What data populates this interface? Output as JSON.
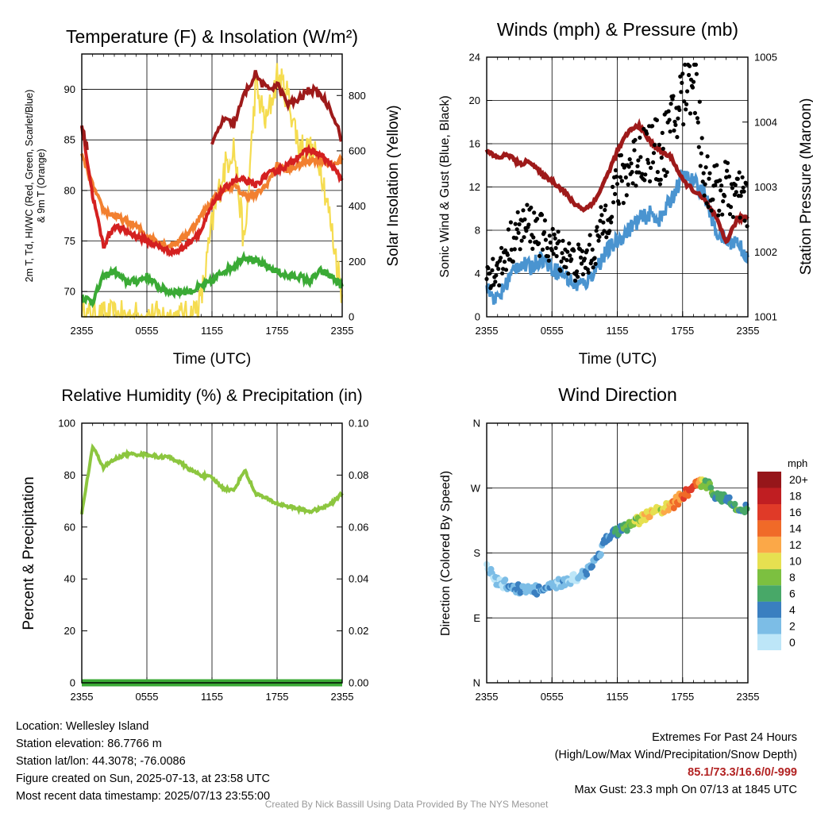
{
  "colors": {
    "temp": "#d42020",
    "dewpoint": "#3aaa35",
    "heat_index": "#9e1a1a",
    "temp_9m": "#f28030",
    "solar": "#f5dc50",
    "wind": "#4a94d0",
    "gust": "#000000",
    "pressure": "#9e1a1a",
    "rh": "#8cc63f",
    "precip": "#3aaa35"
  },
  "panels": {
    "temperature": {
      "title": "Temperature (F) & Insolation (W/m²)",
      "ylabel_left_line1": "2m T, Td, HI/WC (Red, Green, Scarlet/Blue)",
      "ylabel_left_line2": "& 9m T (Orange)",
      "ylabel_right": "Solar Insolation (Yellow)",
      "xlabel": "Time (UTC)",
      "left_ticks": [
        "70",
        "75",
        "80",
        "85",
        "90"
      ],
      "right_ticks": [
        "0",
        "200",
        "400",
        "600",
        "800"
      ],
      "x_ticks": [
        "2355",
        "0555",
        "1155",
        "1755",
        "2355"
      ]
    },
    "winds": {
      "title": "Winds (mph) & Pressure (mb)",
      "ylabel_left": "Sonic Wind & Gust (Blue, Black)",
      "ylabel_right": "Station Pressure (Maroon)",
      "xlabel": "Time (UTC)",
      "left_ticks": [
        "0",
        "4",
        "8",
        "12",
        "16",
        "20",
        "24"
      ],
      "right_ticks": [
        "1001",
        "1002",
        "1003",
        "1004",
        "1005"
      ],
      "x_ticks": [
        "2355",
        "0555",
        "1155",
        "1755",
        "2355"
      ]
    },
    "humidity": {
      "title": "Relative Humidity (%) & Precipitation (in)",
      "ylabel_left": "Percent & Precipitation",
      "left_ticks": [
        "0",
        "20",
        "40",
        "60",
        "80",
        "100"
      ],
      "right_ticks": [
        "0.00",
        "0.02",
        "0.04",
        "0.06",
        "0.08",
        "0.10"
      ],
      "x_ticks": [
        "2355",
        "0555",
        "1155",
        "1755",
        "2355"
      ]
    },
    "direction": {
      "title": "Wind Direction",
      "ylabel_left": "Direction (Colored By Speed)",
      "left_ticks": [
        "N",
        "E",
        "S",
        "W",
        "N"
      ],
      "x_ticks": [
        "2355",
        "0555",
        "1155",
        "1755",
        "2355"
      ],
      "colorbar_title": "mph",
      "colorbar_labels": [
        "0",
        "2",
        "4",
        "6",
        "8",
        "10",
        "12",
        "14",
        "16",
        "18",
        "20+"
      ],
      "colorbar_colors": [
        "#bde6f8",
        "#7cbde6",
        "#3a7fc0",
        "#48a868",
        "#7cc040",
        "#e6e050",
        "#fba848",
        "#f06a28",
        "#e03a28",
        "#c01e22",
        "#96161a"
      ]
    }
  },
  "info": {
    "location": "Location: Wellesley Island",
    "elevation": "Station elevation: 86.7766 m",
    "latlon": "Station lat/lon: 44.3078; -76.0086",
    "created": "Figure created on Sun, 2025-07-13, at 23:58 UTC",
    "recent": "Most recent data timestamp: 2025/07/13 23:55:00",
    "extremes_title": "Extremes For Past 24 Hours",
    "extremes_legend": "(High/Low/Max Wind/Precipitation/Snow Depth)",
    "extremes_values": "85.1/73.3/16.6/0/-999",
    "max_gust": "Max Gust: 23.3 mph On 07/13 at 1845 UTC",
    "credit": "Created By Nick Bassill Using Data Provided By The NYS Mesonet"
  },
  "chart_data": [
    {
      "type": "line",
      "title": "Temperature (F) & Insolation (W/m²)",
      "xlabel": "Time (UTC)",
      "ylabel": "2m T, Td, HI/WC (Red, Green, Scarlet/Blue) & 9m T (Orange)",
      "ylabel_right": "Solar Insolation (Yellow)",
      "x": [
        "2355",
        "0055",
        "0155",
        "0255",
        "0355",
        "0455",
        "0555",
        "0655",
        "0755",
        "0855",
        "0955",
        "1055",
        "1155",
        "1255",
        "1355",
        "1455",
        "1555",
        "1655",
        "1755",
        "1855",
        "1955",
        "2055",
        "2155",
        "2255",
        "2355"
      ],
      "ylim": [
        67.5,
        93.5
      ],
      "ylim_right": [
        0,
        950
      ],
      "series": [
        {
          "name": "2m T",
          "axis": "left",
          "values": [
            86.5,
            79.5,
            74.5,
            76.5,
            76.0,
            75.5,
            75.0,
            74.5,
            74.0,
            74.0,
            75.0,
            76.0,
            78.5,
            80.0,
            81.0,
            81.0,
            80.5,
            81.5,
            82.0,
            82.5,
            83.5,
            84.0,
            83.5,
            82.5,
            81.0
          ]
        },
        {
          "name": "Td",
          "axis": "left",
          "values": [
            69.5,
            69.0,
            71.5,
            72.0,
            71.0,
            71.0,
            71.5,
            70.5,
            70.0,
            70.0,
            70.0,
            70.5,
            71.0,
            72.0,
            72.5,
            73.5,
            73.0,
            72.5,
            72.0,
            71.5,
            71.5,
            71.0,
            72.0,
            71.5,
            70.5
          ]
        },
        {
          "name": "HI/WC",
          "axis": "left",
          "segments": [
            [
              0,
              86.5
            ],
            [
              1,
              84.0
            ],
            [
              12,
              84.5
            ],
            [
              13,
              87.0
            ],
            [
              14,
              86.5
            ],
            [
              15,
              89.5
            ],
            [
              16,
              91.5
            ],
            [
              17,
              90.0
            ],
            [
              18,
              90.5
            ],
            [
              19,
              88.5
            ],
            [
              20,
              89.0
            ],
            [
              21,
              90.0
            ],
            [
              22,
              89.5
            ],
            [
              23,
              88.0
            ],
            [
              24,
              85.0
            ]
          ]
        },
        {
          "name": "9m T",
          "axis": "left",
          "values": [
            83.5,
            80.5,
            78.0,
            77.5,
            77.0,
            76.5,
            75.5,
            75.0,
            74.5,
            75.0,
            76.0,
            77.5,
            79.0,
            80.0,
            80.5,
            79.5,
            79.5,
            80.5,
            82.5,
            82.0,
            82.5,
            83.0,
            83.0,
            82.5,
            83.0
          ]
        },
        {
          "name": "Solar",
          "axis": "right",
          "values": [
            0,
            0,
            0,
            0,
            0,
            0,
            0,
            0,
            0,
            0,
            0,
            60,
            330,
            520,
            620,
            250,
            830,
            700,
            870,
            800,
            620,
            600,
            560,
            320,
            80
          ]
        }
      ]
    },
    {
      "type": "line",
      "title": "Winds (mph) & Pressure (mb)",
      "xlabel": "Time (UTC)",
      "ylabel": "Sonic Wind & Gust (Blue, Black)",
      "ylabel_right": "Station Pressure (Maroon)",
      "x": [
        "2355",
        "0055",
        "0155",
        "0255",
        "0355",
        "0455",
        "0555",
        "0655",
        "0755",
        "0855",
        "0955",
        "1055",
        "1155",
        "1255",
        "1355",
        "1455",
        "1555",
        "1655",
        "1755",
        "1855",
        "1955",
        "2055",
        "2155",
        "2255",
        "2355"
      ],
      "ylim": [
        0,
        24
      ],
      "ylim_right": [
        1001,
        1005
      ],
      "series": [
        {
          "name": "Sonic Wind",
          "axis": "left",
          "values": [
            2.5,
            1.5,
            3.5,
            5.0,
            4.5,
            5.5,
            4.5,
            4.0,
            3.0,
            3.0,
            4.5,
            6.0,
            7.0,
            8.0,
            9.0,
            9.5,
            9.0,
            11.0,
            13.0,
            12.5,
            11.5,
            8.0,
            7.0,
            7.0,
            5.5
          ]
        },
        {
          "name": "Gust",
          "axis": "left",
          "values": [
            4.5,
            4.0,
            6.5,
            8.0,
            8.5,
            7.5,
            6.5,
            6.0,
            5.0,
            5.0,
            6.5,
            9.5,
            12.0,
            13.5,
            15.0,
            15.5,
            15.0,
            17.5,
            20.5,
            23.3,
            13.0,
            11.5,
            12.0,
            11.0,
            10.5
          ]
        },
        {
          "name": "Station Pressure",
          "axis": "right",
          "values": [
            1003.55,
            1003.45,
            1003.5,
            1003.35,
            1003.4,
            1003.2,
            1003.1,
            1002.95,
            1002.75,
            1002.65,
            1002.8,
            1003.15,
            1003.55,
            1003.85,
            1003.95,
            1003.7,
            1003.55,
            1003.45,
            1003.1,
            1002.95,
            1002.8,
            1002.55,
            1002.15,
            1002.5,
            1002.55
          ]
        }
      ]
    },
    {
      "type": "line",
      "title": "Relative Humidity (%) & Precipitation (in)",
      "ylabel": "Percent & Precipitation",
      "x": [
        "2355",
        "0055",
        "0155",
        "0255",
        "0355",
        "0455",
        "0555",
        "0655",
        "0755",
        "0855",
        "0955",
        "1055",
        "1155",
        "1255",
        "1355",
        "1455",
        "1555",
        "1655",
        "1755",
        "1855",
        "1955",
        "2055",
        "2155",
        "2255",
        "2355"
      ],
      "ylim": [
        0,
        100
      ],
      "ylim_right": [
        0,
        0.1
      ],
      "series": [
        {
          "name": "RH",
          "axis": "left",
          "values": [
            65,
            91,
            83,
            86,
            88,
            88,
            88,
            87,
            87,
            85,
            82,
            80,
            79,
            75,
            74,
            82,
            73,
            71,
            69,
            68,
            67,
            66,
            67,
            69,
            73
          ]
        },
        {
          "name": "Precipitation",
          "axis": "right",
          "values": [
            0,
            0,
            0,
            0,
            0,
            0,
            0,
            0,
            0,
            0,
            0,
            0,
            0,
            0,
            0,
            0,
            0,
            0,
            0,
            0,
            0,
            0,
            0,
            0,
            0
          ]
        }
      ]
    },
    {
      "type": "scatter",
      "title": "Wind Direction",
      "ylabel": "Direction (Colored By Speed)",
      "x": [
        "2355",
        "0055",
        "0155",
        "0255",
        "0355",
        "0455",
        "0555",
        "0655",
        "0755",
        "0855",
        "0955",
        "1055",
        "1155",
        "1255",
        "1355",
        "1455",
        "1555",
        "1655",
        "1755",
        "1855",
        "1955",
        "2055",
        "2155",
        "2255",
        "2355"
      ],
      "yticks": [
        "N",
        "E",
        "S",
        "W",
        "N"
      ],
      "ylim": [
        0,
        360
      ],
      "series": [
        {
          "name": "Direction",
          "values": [
            160,
            140,
            135,
            130,
            130,
            128,
            132,
            140,
            145,
            152,
            170,
            200,
            210,
            215,
            225,
            235,
            240,
            245,
            260,
            270,
            280,
            262,
            255,
            245,
            240
          ]
        },
        {
          "name": "Speed",
          "values": [
            2,
            2,
            3,
            4,
            3,
            4,
            3,
            3,
            2,
            3,
            4,
            5,
            6,
            8,
            10,
            12,
            11,
            13,
            15,
            17,
            8,
            7,
            6,
            7,
            6
          ]
        }
      ]
    }
  ]
}
